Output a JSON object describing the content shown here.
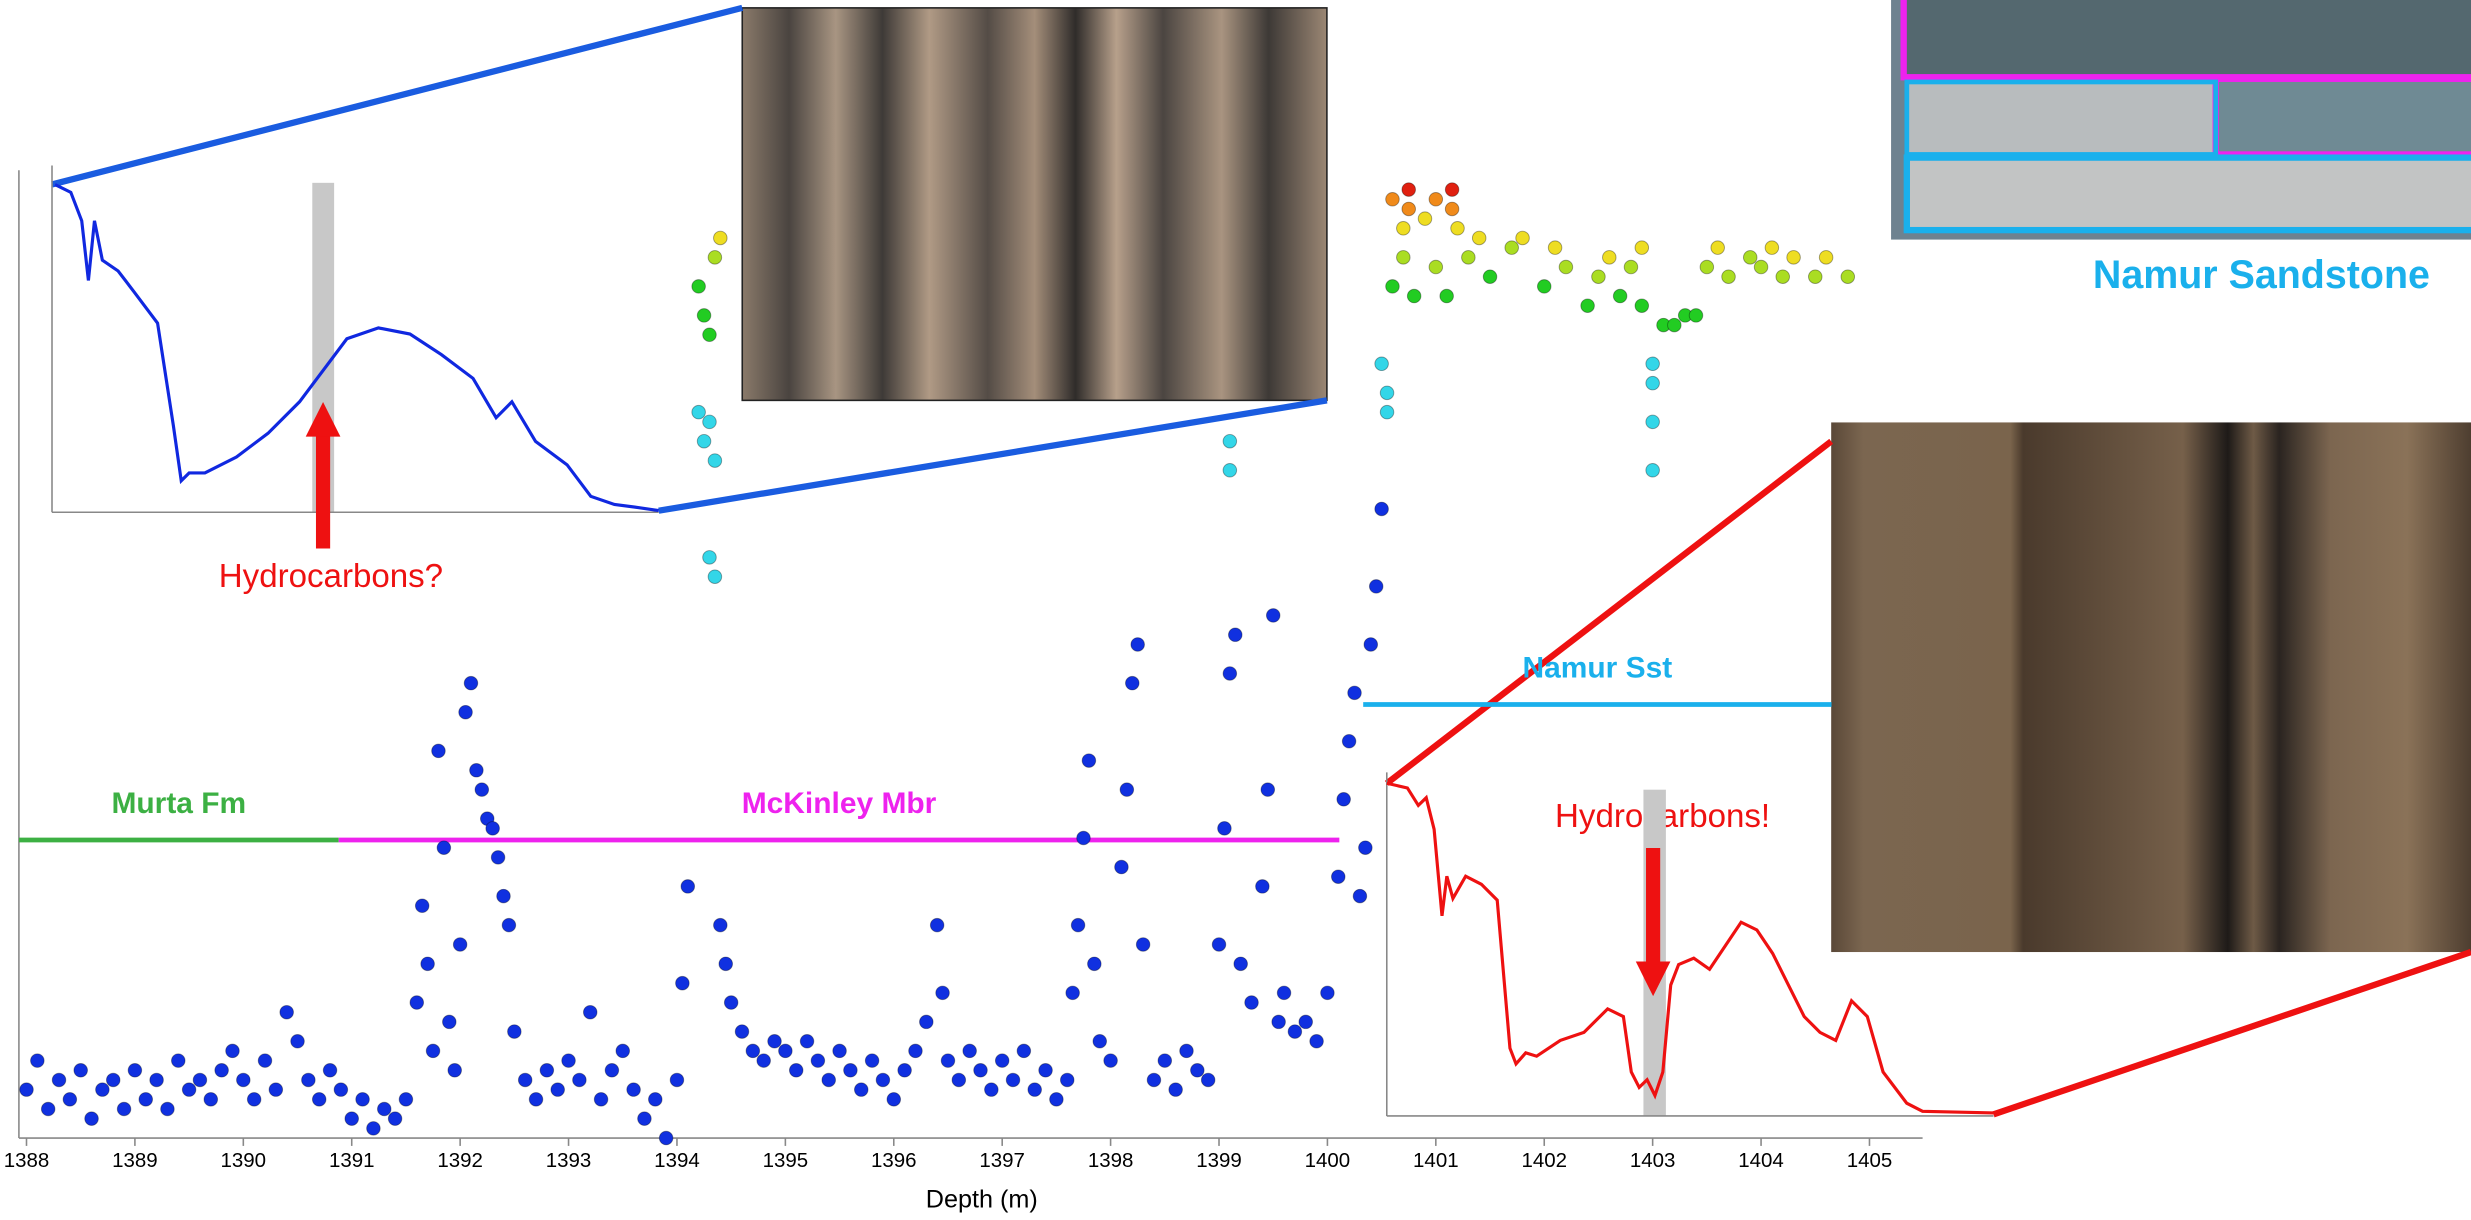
{
  "chart_data": [
    {
      "type": "scatter",
      "xlabel": "Depth (m)",
      "xlim": [
        1387.93,
        1405.49
      ],
      "xticks": [
        1388,
        1389,
        1390,
        1391,
        1392,
        1393,
        1394,
        1395,
        1396,
        1397,
        1398,
        1399,
        1400,
        1401,
        1402,
        1403,
        1404,
        1405
      ],
      "ylim": [
        0,
        100
      ],
      "annotations": [
        "Namur Sandstone"
      ],
      "intervals": [
        {
          "label": "Murta Fm",
          "color": "#3cb043",
          "from": 1387.93,
          "to": 1390.88,
          "y": 30.8
        },
        {
          "label": "McKinley Mbr",
          "color": "#ee22ee",
          "from": 1390.88,
          "to": 1400.11,
          "y": 30.8
        },
        {
          "label": "Namur Sst",
          "color": "#1ab0ec",
          "from": 1400.33,
          "to": 1404.65,
          "y": 44.8
        }
      ],
      "series": [
        {
          "color": "#1030e0",
          "x": [
            1388.0,
            1388.1,
            1388.2,
            1388.3,
            1388.4,
            1388.5,
            1388.6,
            1388.7,
            1388.8,
            1388.9,
            1389.0,
            1389.1,
            1389.2,
            1389.3,
            1389.4,
            1389.5,
            1389.6,
            1389.7,
            1389.8,
            1389.9,
            1390.0,
            1390.1,
            1390.2,
            1390.3,
            1390.4,
            1390.5,
            1390.6,
            1390.7,
            1390.8,
            1390.9,
            1391.0,
            1391.1,
            1391.2,
            1391.3,
            1391.4,
            1391.5,
            1391.6,
            1391.65,
            1391.7,
            1391.75,
            1391.8,
            1391.85,
            1391.9,
            1391.95,
            1392.0,
            1392.05,
            1392.1,
            1392.15,
            1392.2,
            1392.25,
            1392.3,
            1392.35,
            1392.4,
            1392.45,
            1392.5,
            1392.6,
            1392.7,
            1392.8,
            1392.9,
            1393.0,
            1393.1,
            1393.2,
            1393.3,
            1393.4,
            1393.5,
            1393.6,
            1393.7,
            1393.8,
            1393.9,
            1394.0,
            1394.05,
            1394.1,
            1394.4,
            1394.45,
            1394.5,
            1394.6,
            1394.7,
            1394.8,
            1394.9,
            1395.0,
            1395.1,
            1395.2,
            1395.3,
            1395.4,
            1395.5,
            1395.6,
            1395.7,
            1395.8,
            1395.9,
            1396.0,
            1396.1,
            1396.2,
            1396.3,
            1396.4,
            1396.45,
            1396.5,
            1396.6,
            1396.7,
            1396.8,
            1396.9,
            1397.0,
            1397.1,
            1397.2,
            1397.3,
            1397.4,
            1397.5,
            1397.6,
            1397.65,
            1397.7,
            1397.75,
            1397.8,
            1397.85,
            1397.9,
            1398.0,
            1398.1,
            1398.15,
            1398.2,
            1398.25,
            1398.3,
            1398.4,
            1398.5,
            1398.6,
            1398.7,
            1398.8,
            1398.9,
            1399.0,
            1399.05,
            1399.1,
            1399.15,
            1399.2,
            1399.3,
            1399.4,
            1399.45,
            1399.5,
            1399.55,
            1399.6,
            1399.7,
            1399.8,
            1399.9,
            1400.0,
            1400.1,
            1400.15,
            1400.2,
            1400.25,
            1400.3,
            1400.35,
            1400.4,
            1400.45,
            1400.5
          ],
          "values": [
            5,
            8,
            3,
            6,
            4,
            7,
            2,
            5,
            6,
            3,
            7,
            4,
            6,
            3,
            8,
            5,
            6,
            4,
            7,
            9,
            6,
            4,
            8,
            5,
            13,
            10,
            6,
            4,
            7,
            5,
            2,
            4,
            1,
            3,
            2,
            4,
            14,
            24,
            18,
            9,
            40,
            30,
            12,
            7,
            20,
            44,
            47,
            38,
            36,
            33,
            32,
            29,
            25,
            22,
            11,
            6,
            4,
            7,
            5,
            8,
            6,
            13,
            4,
            7,
            9,
            5,
            2,
            4,
            0,
            6,
            16,
            26,
            22,
            18,
            14,
            11,
            9,
            8,
            10,
            9,
            7,
            10,
            8,
            6,
            9,
            7,
            5,
            8,
            6,
            4,
            7,
            9,
            12,
            22,
            15,
            8,
            6,
            9,
            7,
            5,
            8,
            6,
            9,
            5,
            7,
            4,
            6,
            15,
            22,
            31,
            39,
            18,
            10,
            8,
            28,
            36,
            47,
            51,
            20,
            6,
            8,
            5,
            9,
            7,
            6,
            20,
            32,
            48,
            52,
            18,
            14,
            26,
            36,
            54,
            12,
            15,
            11,
            12,
            10,
            15,
            27,
            35,
            41,
            46,
            25,
            30,
            51,
            57,
            65
          ]
        },
        {
          "color": "#33d6e8",
          "x": [
            1394.2,
            1394.25,
            1394.3,
            1394.35,
            1394.3,
            1394.35,
            1399.1,
            1399.1,
            1400.5,
            1400.55,
            1400.55,
            1403.0,
            1403.0,
            1403.0,
            1403.0
          ],
          "values": [
            75,
            72,
            74,
            70,
            60,
            58,
            72,
            69,
            80,
            77,
            75,
            80,
            78,
            74,
            69
          ]
        },
        {
          "color": "#22cc22",
          "x": [
            1394.2,
            1394.25,
            1394.3,
            1400.6,
            1400.8,
            1401.1,
            1401.5,
            1402.0,
            1402.4,
            1402.7,
            1403.1,
            1403.2,
            1403.3,
            1403.4,
            1402.9
          ],
          "values": [
            88,
            85,
            83,
            88,
            87,
            87,
            89,
            88,
            86,
            87,
            84,
            84,
            85,
            85,
            86
          ]
        },
        {
          "color": "#aadd22",
          "x": [
            1394.35,
            1400.7,
            1401.0,
            1401.3,
            1401.7,
            1402.2,
            1402.5,
            1402.8,
            1403.5,
            1403.7,
            1404.0,
            1404.2,
            1404.5,
            1404.8,
            1403.9
          ],
          "values": [
            91,
            91,
            90,
            91,
            92,
            90,
            89,
            90,
            90,
            89,
            90,
            89,
            89,
            89,
            91
          ]
        },
        {
          "color": "#eedd22",
          "x": [
            1394.4,
            1400.7,
            1400.9,
            1401.2,
            1401.4,
            1401.8,
            1402.1,
            1402.6,
            1402.9,
            1403.6,
            1404.1,
            1404.3,
            1404.6
          ],
          "values": [
            93,
            94,
            95,
            94,
            93,
            93,
            92,
            91,
            92,
            92,
            92,
            91,
            91
          ]
        },
        {
          "color": "#f08a1a",
          "x": [
            1400.6,
            1400.75,
            1401.0,
            1401.15
          ],
          "values": [
            97,
            96,
            97,
            96
          ]
        },
        {
          "color": "#e02010",
          "x": [
            1401.15,
            1400.75
          ],
          "values": [
            98,
            98
          ]
        }
      ]
    },
    {
      "type": "line",
      "color": "#1028e0",
      "annotation": "Hydrocarbons?",
      "xlim": [
        0,
        100
      ],
      "ylim": [
        0,
        100
      ],
      "highlight": [
        42.9,
        46.5
      ],
      "highlight_color": "#c8c8c8",
      "x": [
        0.5,
        3.1,
        4.9,
        6,
        7,
        8.3,
        10.9,
        13.5,
        17.4,
        20,
        21.3,
        22.6,
        25.2,
        30.4,
        35.6,
        40.8,
        44.7,
        48.6,
        53.8,
        59,
        64.2,
        69.4,
        73.2,
        75.8,
        79.7,
        84.9,
        88.8,
        92.7,
        96.6,
        100
      ],
      "values": [
        96.7,
        94.4,
        86,
        68.4,
        86,
        74.4,
        71.2,
        65.1,
        55.8,
        25.6,
        9.3,
        11.6,
        11.6,
        16.3,
        23.3,
        32.6,
        41.9,
        51.2,
        54.4,
        52.6,
        46.5,
        39.5,
        27.9,
        32.6,
        20.9,
        14,
        4.7,
        2.3,
        1.4,
        0.5
      ]
    },
    {
      "type": "line",
      "color": "#ee1111",
      "annotation": "Hydrocarbons!",
      "xlim": [
        0,
        100
      ],
      "ylim": [
        0,
        100
      ],
      "highlight": [
        42.3,
        46
      ],
      "highlight_color": "#c8c8c8",
      "x": [
        0,
        3.4,
        5.2,
        6.5,
        7.8,
        9.1,
        9.9,
        10.9,
        13,
        15.6,
        18.2,
        20.3,
        21.3,
        22.9,
        24.7,
        28.6,
        32.5,
        36.4,
        39,
        40.3,
        41.6,
        42.9,
        44.2,
        45.5,
        46.8,
        48.1,
        50.6,
        53.2,
        55.8,
        58.4,
        61,
        63.6,
        66.2,
        68.8,
        71.4,
        74,
        76.6,
        79.2,
        81.8,
        85.7,
        88.3,
        100
      ],
      "values": [
        99.1,
        97.7,
        92.5,
        94.8,
        85.4,
        59.6,
        71.4,
        64.8,
        71.4,
        69,
        64.3,
        20.2,
        15.5,
        18.8,
        17.8,
        22.5,
        24.9,
        31.9,
        29.6,
        13.1,
        8.5,
        10.8,
        6.1,
        13.1,
        39,
        45.1,
        47,
        43.7,
        50.7,
        57.7,
        55.4,
        48.4,
        39,
        29.6,
        24.9,
        22.5,
        34.3,
        29.6,
        13.1,
        3.8,
        1.4,
        0.9
      ]
    }
  ]
}
